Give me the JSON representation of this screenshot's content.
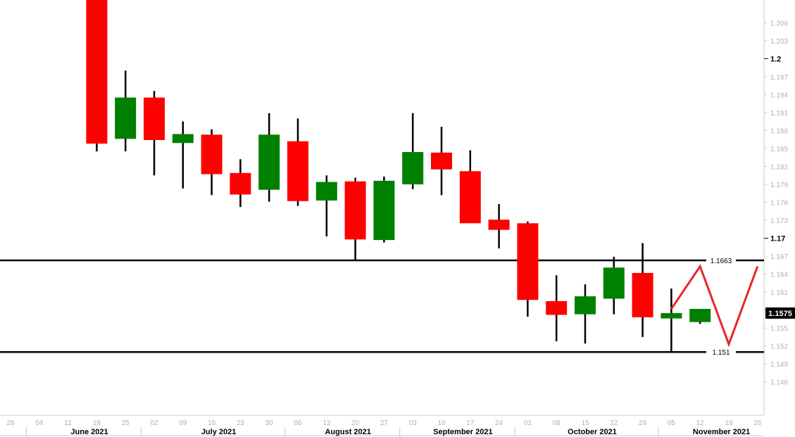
{
  "chart_data": {
    "type": "candlestick",
    "ylim": [
      1.1435,
      1.2085
    ],
    "y_ticks": [
      1.206,
      1.203,
      1.2,
      1.197,
      1.194,
      1.191,
      1.188,
      1.185,
      1.182,
      1.179,
      1.176,
      1.173,
      1.17,
      1.167,
      1.164,
      1.161,
      1.158,
      1.155,
      1.152,
      1.149,
      1.146
    ],
    "y_tick_labels": [
      "1.206",
      "1.203",
      "1.2",
      "1.197",
      "1.194",
      "1.191",
      "1.188",
      "1.185",
      "1.182",
      "1.179",
      "1.176",
      "1.173",
      "1.17",
      "1.167",
      "1.164",
      "1.161",
      "1.158",
      "1.155",
      "1.152",
      "1.149",
      "1.146"
    ],
    "major_y_ticks": [
      "1.2",
      "1.17"
    ],
    "x_ticks": [
      "28",
      "04",
      "11",
      "18",
      "25",
      "02",
      "09",
      "16",
      "23",
      "30",
      "06",
      "13",
      "20",
      "27",
      "03",
      "10",
      "17",
      "24",
      "01",
      "08",
      "15",
      "22",
      "29",
      "05",
      "12",
      "19",
      "26"
    ],
    "months": [
      {
        "label": "June 2021",
        "start": 1,
        "end": 5
      },
      {
        "label": "July 2021",
        "start": 5,
        "end": 10
      },
      {
        "label": "August 2021",
        "start": 10,
        "end": 14
      },
      {
        "label": "September 2021",
        "start": 14,
        "end": 18
      },
      {
        "label": "October 2021",
        "start": 18,
        "end": 23
      },
      {
        "label": "November 2021",
        "start": 23,
        "end": 27
      }
    ],
    "candles": [
      {
        "date": "18",
        "open": 1.2124,
        "high": 1.2124,
        "low": 1.1845,
        "close": 1.1858
      },
      {
        "date": "25",
        "open": 1.1866,
        "high": 1.198,
        "low": 1.1845,
        "close": 1.1935
      },
      {
        "date": "02",
        "open": 1.1935,
        "high": 1.1946,
        "low": 1.1805,
        "close": 1.1864
      },
      {
        "date": "09",
        "open": 1.1859,
        "high": 1.1895,
        "low": 1.1783,
        "close": 1.1874
      },
      {
        "date": "16",
        "open": 1.1873,
        "high": 1.1882,
        "low": 1.1772,
        "close": 1.1807
      },
      {
        "date": "23",
        "open": 1.1809,
        "high": 1.1832,
        "low": 1.1752,
        "close": 1.1773
      },
      {
        "date": "30",
        "open": 1.1781,
        "high": 1.1909,
        "low": 1.1761,
        "close": 1.1873
      },
      {
        "date": "06",
        "open": 1.1862,
        "high": 1.19,
        "low": 1.1754,
        "close": 1.1762
      },
      {
        "date": "13",
        "open": 1.1763,
        "high": 1.1805,
        "low": 1.1703,
        "close": 1.1794
      },
      {
        "date": "20",
        "open": 1.1795,
        "high": 1.1801,
        "low": 1.1664,
        "close": 1.1698
      },
      {
        "date": "27",
        "open": 1.1697,
        "high": 1.1803,
        "low": 1.1693,
        "close": 1.1796
      },
      {
        "date": "03",
        "open": 1.179,
        "high": 1.1909,
        "low": 1.1782,
        "close": 1.1844
      },
      {
        "date": "10",
        "open": 1.1843,
        "high": 1.1886,
        "low": 1.1772,
        "close": 1.1815
      },
      {
        "date": "17",
        "open": 1.1812,
        "high": 1.1847,
        "low": 1.1726,
        "close": 1.1725
      },
      {
        "date": "24",
        "open": 1.1731,
        "high": 1.1757,
        "low": 1.1683,
        "close": 1.1714
      },
      {
        "date": "01",
        "open": 1.1725,
        "high": 1.1728,
        "low": 1.1569,
        "close": 1.1597
      },
      {
        "date": "08",
        "open": 1.1595,
        "high": 1.1638,
        "low": 1.1528,
        "close": 1.1572
      },
      {
        "date": "15",
        "open": 1.1573,
        "high": 1.1623,
        "low": 1.1524,
        "close": 1.1603
      },
      {
        "date": "22",
        "open": 1.1599,
        "high": 1.1669,
        "low": 1.1573,
        "close": 1.1651
      },
      {
        "date": "29",
        "open": 1.1642,
        "high": 1.1692,
        "low": 1.1535,
        "close": 1.1568
      },
      {
        "date": "05",
        "open": 1.1566,
        "high": 1.1616,
        "low": 1.151,
        "close": 1.1575
      },
      {
        "date": "12",
        "open": 1.156,
        "high": 1.1582,
        "low": 1.1557,
        "close": 1.1582
      }
    ],
    "levels": [
      {
        "value": 1.1663,
        "label": "1.1663"
      },
      {
        "value": 1.151,
        "label": "1.151"
      }
    ],
    "current_price": {
      "value": 1.1575,
      "label": "1.1575"
    },
    "projection": [
      {
        "x": 25,
        "y": 1.1582
      },
      {
        "x": 26,
        "y": 1.1653
      },
      {
        "x": 27,
        "y": 1.1523
      },
      {
        "x": 28,
        "y": 1.1653
      }
    ],
    "colors": {
      "up": "#008000",
      "down": "#ff0000",
      "wick": "#000000",
      "level_line": "#000000",
      "projection": "#e8252a",
      "price_label_bg": "#000000",
      "tick_text": "#b0b0b0",
      "axis_line": "#c8c8c8"
    },
    "grid": false
  }
}
